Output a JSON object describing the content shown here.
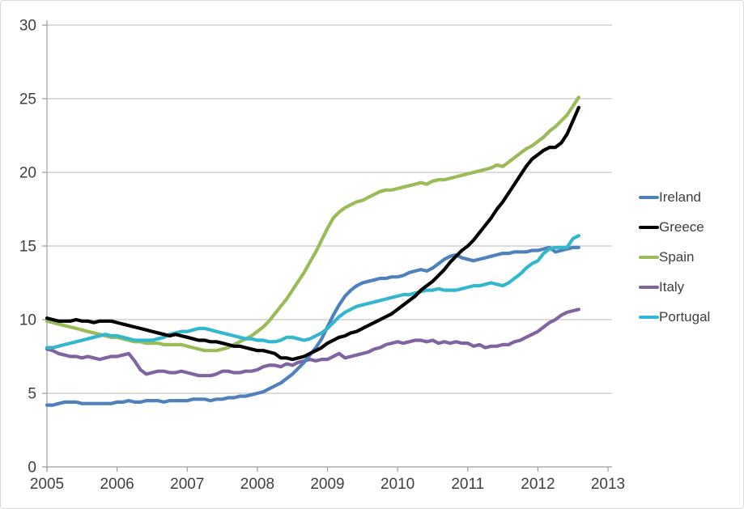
{
  "chart_data": {
    "type": "line",
    "title": "",
    "xlabel": "",
    "ylabel": "",
    "x_start": "2005-01",
    "x_interval_months": 1,
    "x_ticks": [
      2005,
      2006,
      2007,
      2008,
      2009,
      2010,
      2011,
      2012,
      2013
    ],
    "y_ticks": [
      0,
      5,
      10,
      15,
      20,
      25,
      30
    ],
    "ylim": [
      0,
      30
    ],
    "grid": true,
    "legend_position": "right",
    "colors": {
      "gridline": "#c6c6c6",
      "axis": "#9d9d9d",
      "tick_text": "#3f3f3f",
      "frame_border": "#d9d9d9",
      "background": "#ffffff"
    },
    "series": [
      {
        "name": "Ireland",
        "color": "#4F81BD",
        "values": [
          4.2,
          4.2,
          4.3,
          4.4,
          4.4,
          4.4,
          4.3,
          4.3,
          4.3,
          4.3,
          4.3,
          4.3,
          4.4,
          4.4,
          4.5,
          4.4,
          4.4,
          4.5,
          4.5,
          4.5,
          4.4,
          4.5,
          4.5,
          4.5,
          4.5,
          4.6,
          4.6,
          4.6,
          4.5,
          4.6,
          4.6,
          4.7,
          4.7,
          4.8,
          4.8,
          4.9,
          5.0,
          5.1,
          5.3,
          5.5,
          5.7,
          6.0,
          6.3,
          6.7,
          7.1,
          7.6,
          8.1,
          8.7,
          9.5,
          10.3,
          11.0,
          11.6,
          12.0,
          12.3,
          12.5,
          12.6,
          12.7,
          12.8,
          12.8,
          12.9,
          12.9,
          13.0,
          13.2,
          13.3,
          13.4,
          13.3,
          13.5,
          13.8,
          14.1,
          14.3,
          14.4,
          14.2,
          14.1,
          14.0,
          14.1,
          14.2,
          14.3,
          14.4,
          14.5,
          14.5,
          14.6,
          14.6,
          14.6,
          14.7,
          14.7,
          14.8,
          14.9,
          14.6,
          14.7,
          14.8,
          14.9,
          14.9
        ]
      },
      {
        "name": "Greece",
        "color": "#000000",
        "values": [
          10.1,
          10.0,
          9.9,
          9.9,
          9.9,
          10.0,
          9.9,
          9.9,
          9.8,
          9.9,
          9.9,
          9.9,
          9.8,
          9.7,
          9.6,
          9.5,
          9.4,
          9.3,
          9.2,
          9.1,
          9.0,
          8.9,
          9.0,
          8.9,
          8.8,
          8.7,
          8.6,
          8.6,
          8.5,
          8.5,
          8.4,
          8.3,
          8.2,
          8.2,
          8.1,
          8.0,
          7.9,
          7.9,
          7.8,
          7.7,
          7.4,
          7.4,
          7.3,
          7.4,
          7.5,
          7.7,
          7.9,
          8.1,
          8.4,
          8.6,
          8.8,
          8.9,
          9.1,
          9.2,
          9.4,
          9.6,
          9.8,
          10.0,
          10.2,
          10.4,
          10.7,
          11.0,
          11.3,
          11.6,
          12.0,
          12.3,
          12.6,
          13.0,
          13.4,
          13.9,
          14.3,
          14.7,
          15.0,
          15.4,
          15.9,
          16.4,
          16.9,
          17.5,
          18.0,
          18.6,
          19.2,
          19.8,
          20.4,
          20.9,
          21.2,
          21.5,
          21.7,
          21.7,
          22.0,
          22.6,
          23.5,
          24.4
        ]
      },
      {
        "name": "Spain",
        "color": "#9BBB59",
        "values": [
          9.9,
          9.8,
          9.7,
          9.6,
          9.5,
          9.4,
          9.3,
          9.2,
          9.1,
          9.0,
          8.9,
          8.8,
          8.8,
          8.7,
          8.6,
          8.5,
          8.5,
          8.4,
          8.4,
          8.4,
          8.3,
          8.3,
          8.3,
          8.3,
          8.2,
          8.1,
          8.0,
          7.9,
          7.9,
          7.9,
          8.0,
          8.1,
          8.3,
          8.5,
          8.7,
          8.9,
          9.2,
          9.5,
          9.9,
          10.4,
          10.9,
          11.4,
          12.0,
          12.6,
          13.2,
          13.9,
          14.6,
          15.4,
          16.2,
          16.9,
          17.3,
          17.6,
          17.8,
          18.0,
          18.1,
          18.3,
          18.5,
          18.7,
          18.8,
          18.8,
          18.9,
          19.0,
          19.1,
          19.2,
          19.3,
          19.2,
          19.4,
          19.5,
          19.5,
          19.6,
          19.7,
          19.8,
          19.9,
          20.0,
          20.1,
          20.2,
          20.3,
          20.5,
          20.4,
          20.7,
          21.0,
          21.3,
          21.6,
          21.8,
          22.1,
          22.4,
          22.8,
          23.1,
          23.5,
          23.9,
          24.5,
          25.1
        ]
      },
      {
        "name": "Italy",
        "color": "#8064A2",
        "values": [
          8.0,
          7.9,
          7.7,
          7.6,
          7.5,
          7.5,
          7.4,
          7.5,
          7.4,
          7.3,
          7.4,
          7.5,
          7.5,
          7.6,
          7.7,
          7.2,
          6.6,
          6.3,
          6.4,
          6.5,
          6.5,
          6.4,
          6.4,
          6.5,
          6.4,
          6.3,
          6.2,
          6.2,
          6.2,
          6.3,
          6.5,
          6.5,
          6.4,
          6.4,
          6.5,
          6.5,
          6.6,
          6.8,
          6.9,
          6.9,
          6.8,
          7.0,
          6.9,
          7.1,
          7.2,
          7.3,
          7.2,
          7.3,
          7.3,
          7.5,
          7.7,
          7.4,
          7.5,
          7.6,
          7.7,
          7.8,
          8.0,
          8.1,
          8.3,
          8.4,
          8.5,
          8.4,
          8.5,
          8.6,
          8.6,
          8.5,
          8.6,
          8.4,
          8.5,
          8.4,
          8.5,
          8.4,
          8.4,
          8.2,
          8.3,
          8.1,
          8.2,
          8.2,
          8.3,
          8.3,
          8.5,
          8.6,
          8.8,
          9.0,
          9.2,
          9.5,
          9.8,
          10.0,
          10.3,
          10.5,
          10.6,
          10.7
        ]
      },
      {
        "name": "Portugal",
        "color": "#33B7CE",
        "values": [
          8.1,
          8.1,
          8.2,
          8.3,
          8.4,
          8.5,
          8.6,
          8.7,
          8.8,
          8.9,
          9.0,
          8.9,
          8.9,
          8.8,
          8.7,
          8.6,
          8.6,
          8.6,
          8.6,
          8.7,
          8.8,
          9.0,
          9.1,
          9.2,
          9.2,
          9.3,
          9.4,
          9.4,
          9.3,
          9.2,
          9.1,
          9.0,
          8.9,
          8.8,
          8.7,
          8.7,
          8.6,
          8.6,
          8.5,
          8.5,
          8.6,
          8.8,
          8.8,
          8.7,
          8.6,
          8.7,
          8.9,
          9.1,
          9.4,
          9.8,
          10.2,
          10.5,
          10.7,
          10.9,
          11.0,
          11.1,
          11.2,
          11.3,
          11.4,
          11.5,
          11.6,
          11.7,
          11.7,
          11.8,
          11.9,
          12.0,
          12.0,
          12.1,
          12.0,
          12.0,
          12.0,
          12.1,
          12.2,
          12.3,
          12.3,
          12.4,
          12.5,
          12.4,
          12.3,
          12.5,
          12.8,
          13.1,
          13.5,
          13.8,
          14.0,
          14.5,
          14.8,
          14.9,
          14.9,
          14.9,
          15.5,
          15.7
        ]
      }
    ]
  }
}
